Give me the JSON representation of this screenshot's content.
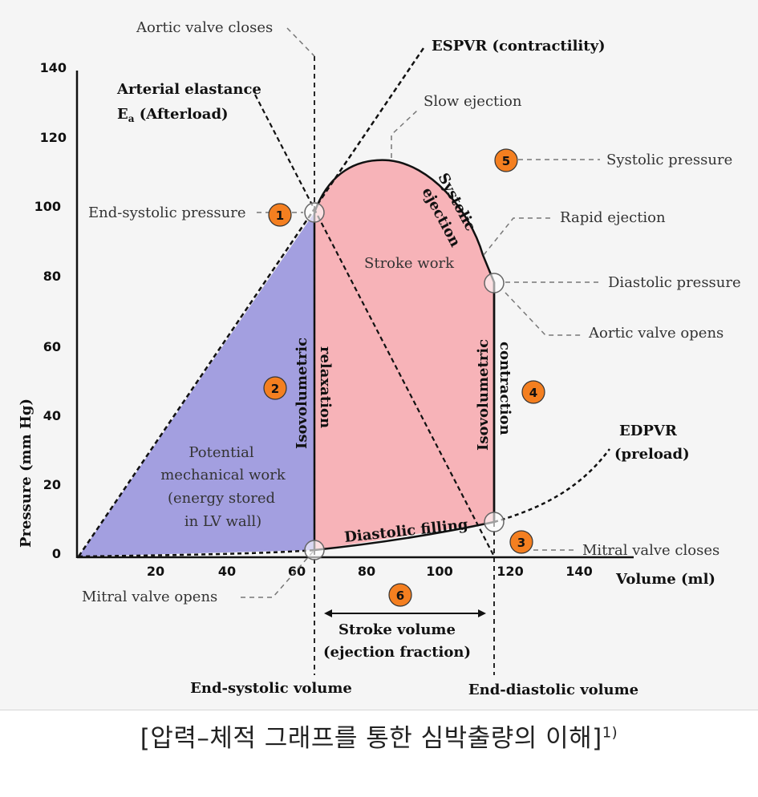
{
  "colors": {
    "potential_fill": "#a39fe0",
    "stroke_fill": "#f7b3b8",
    "badge": "#f47f20",
    "stroke_work_text": "#6a1010",
    "potential_text": "#2e2aa0"
  },
  "axes": {
    "y_label": "Pressure (mm Hg)",
    "x_label": "Volume (ml)",
    "y_ticks": [
      "0",
      "20",
      "40",
      "60",
      "80",
      "100",
      "120",
      "140"
    ],
    "x_ticks": [
      "20",
      "40",
      "60",
      "80",
      "100",
      "120",
      "140"
    ]
  },
  "labels": {
    "aortic_valve_closes": "Aortic valve closes",
    "espvr": "ESPVR (contractility)",
    "arterial_elastance_1": "Arterial elastance",
    "arterial_elastance_2": "E",
    "arterial_elastance_sub": "a",
    "arterial_elastance_3": " (Afterload)",
    "slow_ejection": "Slow ejection",
    "systolic_pressure": "Systolic pressure",
    "end_systolic_pressure": "End-systolic pressure",
    "systolic_ejection_1": "Systolic",
    "systolic_ejection_2": "ejection",
    "rapid_ejection": "Rapid ejection",
    "stroke_work": "Stroke work",
    "diastolic_pressure": "Diastolic pressure",
    "aortic_valve_opens": "Aortic valve opens",
    "iso_relax_1": "Isovolumetric",
    "iso_relax_2": "relaxation",
    "iso_contract_1": "Isovolumetric",
    "iso_contract_2": "contraction",
    "edpvr_1": "EDPVR",
    "edpvr_2": "(preload)",
    "potential_1": "Potential",
    "potential_2": "mechanical work",
    "potential_3": "(energy stored",
    "potential_4": "in LV wall)",
    "diastolic_filling": "Diastolic filling",
    "mitral_valve_closes": "Mitral valve closes",
    "mitral_valve_opens": "Mitral valve opens",
    "stroke_volume_1": "Stroke volume",
    "stroke_volume_2": "(ejection fraction)",
    "end_systolic_volume": "End-systolic volume",
    "end_diastolic_volume": "End-diastolic volume"
  },
  "badges": [
    "1",
    "2",
    "3",
    "4",
    "5",
    "6"
  ],
  "caption": {
    "text": "[압력–체적 그래프를 통한 심박출량의 이해]",
    "footnote": "1)"
  }
}
